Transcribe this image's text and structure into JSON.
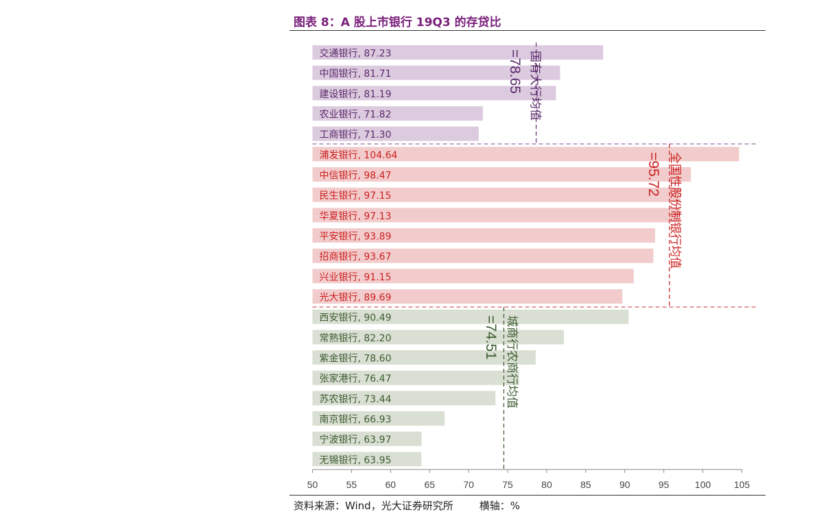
{
  "header": {
    "title": "图表 8：A 股上市银行 19Q3 的存贷比"
  },
  "footer": {
    "source": "资料来源：Wind，光大证券研究所",
    "unit": "横轴：%"
  },
  "colors": {
    "state_bar": "#dccbdf",
    "state_text": "#5b2a6b",
    "joint_bar": "#f2cccc",
    "joint_text": "#cc1f1f",
    "city_bar": "#d9dfd3",
    "city_text": "#3d5c30",
    "axis": "#888888"
  },
  "chart_data": {
    "type": "bar",
    "orientation": "horizontal",
    "title": "图表 8：A 股上市银行 19Q3 的存贷比",
    "xlabel": "横轴：%",
    "xlim": [
      50,
      105
    ],
    "xticks": [
      "50",
      "55",
      "60",
      "65",
      "70",
      "75",
      "80",
      "85",
      "90",
      "95",
      "100",
      "105"
    ],
    "groups": [
      {
        "name": "国有大行均值",
        "average": 78.65,
        "average_label": "=78.65",
        "color_key": "state",
        "bars": [
          {
            "bank": "交通银行",
            "value": 87.23,
            "label": "交通银行, 87.23"
          },
          {
            "bank": "中国银行",
            "value": 81.71,
            "label": "中国银行, 81.71"
          },
          {
            "bank": "建设银行",
            "value": 81.19,
            "label": "建设银行, 81.19"
          },
          {
            "bank": "农业银行",
            "value": 71.82,
            "label": "农业银行, 71.82"
          },
          {
            "bank": "工商银行",
            "value": 71.3,
            "label": "工商银行, 71.30"
          }
        ]
      },
      {
        "name": "全国性股份制银行均值",
        "average": 95.72,
        "average_label": "=95.72",
        "color_key": "joint",
        "bars": [
          {
            "bank": "浦发银行",
            "value": 104.64,
            "label": "浦发银行, 104.64"
          },
          {
            "bank": "中信银行",
            "value": 98.47,
            "label": "中信银行, 98.47"
          },
          {
            "bank": "民生银行",
            "value": 97.15,
            "label": "民生银行, 97.15"
          },
          {
            "bank": "华夏银行",
            "value": 97.13,
            "label": "华夏银行, 97.13"
          },
          {
            "bank": "平安银行",
            "value": 93.89,
            "label": "平安银行, 93.89"
          },
          {
            "bank": "招商银行",
            "value": 93.67,
            "label": "招商银行, 93.67"
          },
          {
            "bank": "兴业银行",
            "value": 91.15,
            "label": "兴业银行, 91.15"
          },
          {
            "bank": "光大银行",
            "value": 89.69,
            "label": "光大银行, 89.69"
          }
        ]
      },
      {
        "name": "城商行农商行均值",
        "average": 74.51,
        "average_label": "=74.51",
        "color_key": "city",
        "bars": [
          {
            "bank": "西安银行",
            "value": 90.49,
            "label": "西安银行, 90.49"
          },
          {
            "bank": "常熟银行",
            "value": 82.2,
            "label": "常熟银行, 82.20"
          },
          {
            "bank": "紫金银行",
            "value": 78.6,
            "label": "紫金银行, 78.60"
          },
          {
            "bank": "张家港行",
            "value": 76.47,
            "label": "张家港行, 76.47"
          },
          {
            "bank": "苏农银行",
            "value": 73.44,
            "label": "苏农银行, 73.44"
          },
          {
            "bank": "南京银行",
            "value": 66.93,
            "label": "南京银行, 66.93"
          },
          {
            "bank": "宁波银行",
            "value": 63.97,
            "label": "宁波银行, 63.97"
          },
          {
            "bank": "无锡银行",
            "value": 63.95,
            "label": "无锡银行, 63.95"
          }
        ]
      }
    ]
  }
}
